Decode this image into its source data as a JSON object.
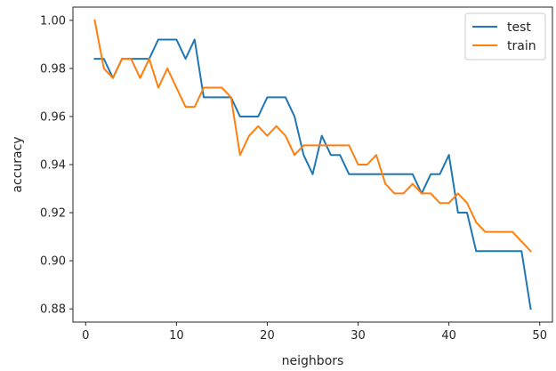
{
  "chart_data": {
    "type": "line",
    "title": "",
    "xlabel": "neighbors",
    "ylabel": "accuracy",
    "xlim": [
      -1.4,
      51.4
    ],
    "ylim": [
      0.8745,
      1.0055
    ],
    "xticks": [
      0,
      10,
      20,
      30,
      40,
      50
    ],
    "yticks": [
      0.88,
      0.9,
      0.92,
      0.94,
      0.96,
      0.98,
      1.0
    ],
    "ytick_labels": [
      "0.88",
      "0.90",
      "0.92",
      "0.94",
      "0.96",
      "0.98",
      "1.00"
    ],
    "grid": false,
    "legend_position": "top-right",
    "x": [
      1,
      2,
      3,
      4,
      5,
      6,
      7,
      8,
      9,
      10,
      11,
      12,
      13,
      14,
      15,
      16,
      17,
      18,
      19,
      20,
      21,
      22,
      23,
      24,
      25,
      26,
      27,
      28,
      29,
      30,
      31,
      32,
      33,
      34,
      35,
      36,
      37,
      38,
      39,
      40,
      41,
      42,
      43,
      44,
      45,
      46,
      47,
      48,
      49
    ],
    "series": [
      {
        "name": "test",
        "color": "#1f77b4",
        "values": [
          0.984,
          0.984,
          0.976,
          0.984,
          0.984,
          0.984,
          0.984,
          0.992,
          0.992,
          0.992,
          0.984,
          0.992,
          0.968,
          0.968,
          0.968,
          0.968,
          0.96,
          0.96,
          0.96,
          0.968,
          0.968,
          0.968,
          0.96,
          0.944,
          0.936,
          0.952,
          0.944,
          0.944,
          0.936,
          0.936,
          0.936,
          0.936,
          0.936,
          0.936,
          0.936,
          0.936,
          0.928,
          0.936,
          0.936,
          0.944,
          0.92,
          0.92,
          0.904,
          0.904,
          0.904,
          0.904,
          0.904,
          0.904,
          0.88
        ]
      },
      {
        "name": "train",
        "color": "#ff7f0e",
        "values": [
          1.0,
          0.98,
          0.976,
          0.984,
          0.984,
          0.976,
          0.984,
          0.972,
          0.98,
          0.972,
          0.964,
          0.964,
          0.972,
          0.972,
          0.972,
          0.968,
          0.944,
          0.952,
          0.956,
          0.952,
          0.956,
          0.952,
          0.944,
          0.948,
          0.948,
          0.948,
          0.948,
          0.948,
          0.948,
          0.94,
          0.94,
          0.944,
          0.932,
          0.928,
          0.928,
          0.932,
          0.928,
          0.928,
          0.924,
          0.924,
          0.928,
          0.924,
          0.916,
          0.912,
          0.912,
          0.912,
          0.912,
          0.908,
          0.904
        ]
      }
    ]
  }
}
